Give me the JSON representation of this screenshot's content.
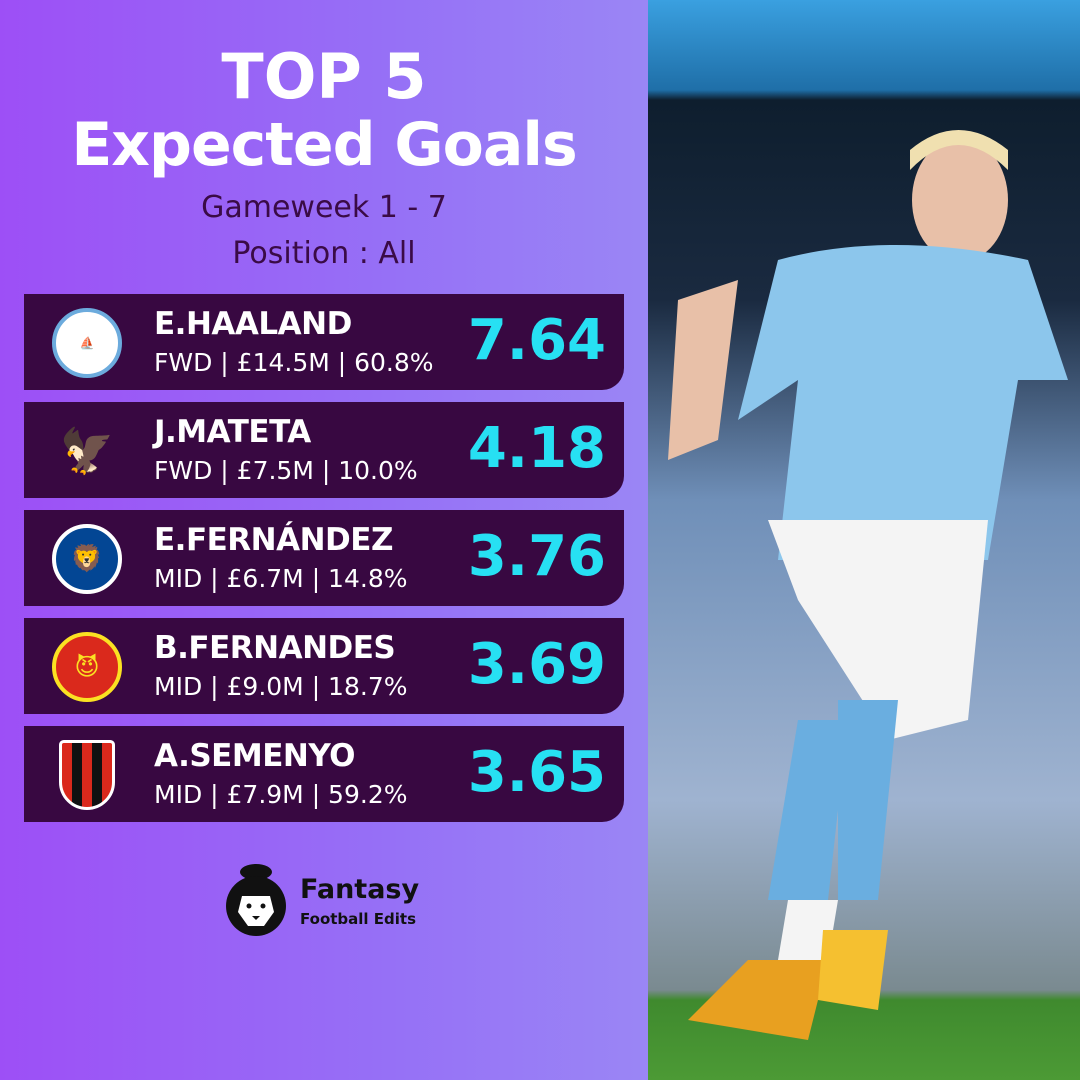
{
  "header": {
    "title_line1": "TOP 5",
    "title_line2": "Expected Goals",
    "gameweek": "Gameweek 1 - 7",
    "position": "Position : All"
  },
  "players": [
    {
      "name": "E.HAALAND",
      "info": "FWD | £14.5M | 60.8%",
      "xg": "7.64",
      "club_icon": "man-city-crest",
      "color": "#6cabdd"
    },
    {
      "name": "J.MATETA",
      "info": "FWD | £7.5M | 10.0%",
      "xg": "4.18",
      "club_icon": "crystal-palace-crest",
      "color": "#1b458f"
    },
    {
      "name": "E.FERNÁNDEZ",
      "info": "MID | £6.7M | 14.8%",
      "xg": "3.76",
      "club_icon": "chelsea-crest",
      "color": "#034694"
    },
    {
      "name": "B.FERNANDES",
      "info": "MID | £9.0M | 18.7%",
      "xg": "3.69",
      "club_icon": "man-united-crest",
      "color": "#da291c"
    },
    {
      "name": "A.SEMENYO",
      "info": "MID | £7.9M | 59.2%",
      "xg": "3.65",
      "club_icon": "bournemouth-crest",
      "color": "#da291c"
    }
  ],
  "brand": {
    "line1": "Fantasy",
    "line2": "Football Edits"
  },
  "colors": {
    "accent_value": "#27e0f3",
    "row_bg": "#380841",
    "bg_left": "#9d4ff6",
    "bg_right": "#9a86f5"
  }
}
